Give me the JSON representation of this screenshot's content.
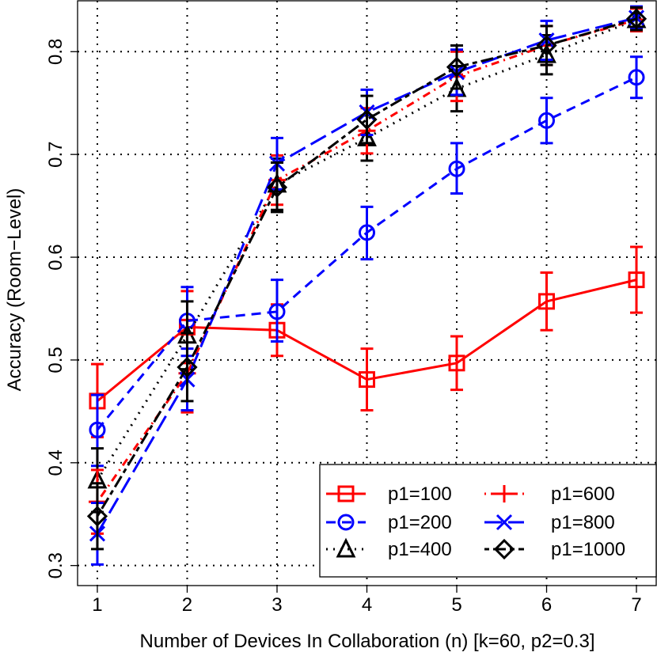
{
  "chart_data": {
    "type": "line",
    "xlabel": "Number of Devices In Collaboration (n) [k=60, p2=0.3]",
    "ylabel": "Accuracy (Room−Level)",
    "xlim": [
      0.78,
      7.22
    ],
    "ylim": [
      0.2805,
      0.8495
    ],
    "x_ticks": [
      1,
      2,
      3,
      4,
      5,
      6,
      7
    ],
    "y_ticks": [
      0.3,
      0.4,
      0.5,
      0.6,
      0.7,
      0.8
    ],
    "x_tick_labels": [
      "1",
      "2",
      "3",
      "4",
      "5",
      "6",
      "7"
    ],
    "y_tick_labels": [
      "0.3",
      "0.4",
      "0.5",
      "0.6",
      "0.7",
      "0.8"
    ],
    "grid": "dotted",
    "legend_position": "bottom-right",
    "x": [
      1,
      2,
      3,
      4,
      5,
      6,
      7
    ],
    "series": [
      {
        "name": "p1=100",
        "color": "#ff0000",
        "line_style": "solid",
        "marker": "square",
        "values": [
          0.46,
          0.532,
          0.529,
          0.481,
          0.497,
          0.557,
          0.578
        ],
        "err_low": [
          0.425,
          0.497,
          0.504,
          0.451,
          0.471,
          0.529,
          0.546
        ],
        "err_high": [
          0.496,
          0.567,
          0.554,
          0.511,
          0.523,
          0.585,
          0.61
        ]
      },
      {
        "name": "p1=200",
        "color": "#0000ff",
        "line_style": "dashed",
        "marker": "circle",
        "values": [
          0.432,
          0.538,
          0.547,
          0.624,
          0.686,
          0.733,
          0.775
        ],
        "err_low": [
          0.397,
          0.504,
          0.518,
          0.598,
          0.662,
          0.711,
          0.755
        ],
        "err_high": [
          0.466,
          0.571,
          0.578,
          0.649,
          0.711,
          0.755,
          0.795
        ]
      },
      {
        "name": "p1=400",
        "color": "#000000",
        "line_style": "dotted",
        "marker": "triangle",
        "values": [
          0.383,
          0.524,
          0.671,
          0.716,
          0.764,
          0.797,
          0.831
        ],
        "err_low": [
          0.352,
          0.491,
          0.646,
          0.694,
          0.742,
          0.778,
          0.82
        ],
        "err_high": [
          0.414,
          0.557,
          0.696,
          0.738,
          0.786,
          0.816,
          0.842
        ]
      },
      {
        "name": "p1=600",
        "color": "#ff0000",
        "line_style": "dotdash",
        "marker": "plus",
        "values": [
          0.362,
          0.487,
          0.675,
          0.723,
          0.776,
          0.806,
          0.831
        ],
        "err_low": [
          0.331,
          0.449,
          0.651,
          0.701,
          0.752,
          0.787,
          0.82
        ],
        "err_high": [
          0.393,
          0.525,
          0.699,
          0.745,
          0.8,
          0.825,
          0.842
        ]
      },
      {
        "name": "p1=800",
        "color": "#0000ff",
        "line_style": "longdash",
        "marker": "cross",
        "values": [
          0.331,
          0.481,
          0.691,
          0.741,
          0.78,
          0.811,
          0.833
        ],
        "err_low": [
          0.301,
          0.451,
          0.666,
          0.719,
          0.758,
          0.792,
          0.822
        ],
        "err_high": [
          0.361,
          0.511,
          0.716,
          0.763,
          0.802,
          0.83,
          0.844
        ]
      },
      {
        "name": "p1=1000",
        "color": "#000000",
        "line_style": "twodash",
        "marker": "diamond",
        "values": [
          0.348,
          0.493,
          0.668,
          0.734,
          0.785,
          0.806,
          0.832
        ],
        "err_low": [
          0.316,
          0.46,
          0.644,
          0.711,
          0.764,
          0.787,
          0.821
        ],
        "err_high": [
          0.38,
          0.526,
          0.692,
          0.757,
          0.806,
          0.825,
          0.843
        ]
      }
    ]
  }
}
